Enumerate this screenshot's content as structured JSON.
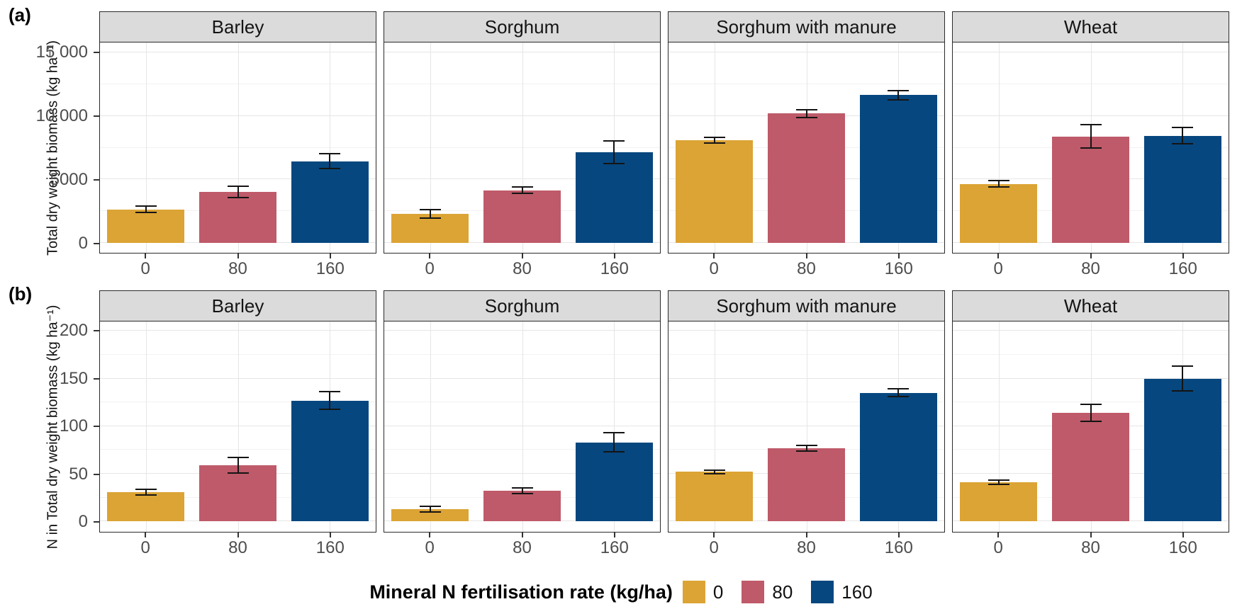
{
  "figure_title": "",
  "legend": {
    "title": "Mineral N fertilisation rate (kg/ha)",
    "position": "bottom",
    "items": [
      {
        "label": "0",
        "color": "#DCA435"
      },
      {
        "label": "80",
        "color": "#BE5A69"
      },
      {
        "label": "160",
        "color": "#06477F"
      }
    ]
  },
  "chart_data": [
    {
      "type": "bar",
      "panel_label": "(a)",
      "title": "",
      "xlabel": "",
      "ylabel": "Total dry weight biomass (kg ha⁻¹)",
      "facet_titles": [
        "Barley",
        "Sorghum",
        "Sorghum with manure",
        "Wheat"
      ],
      "categories": [
        "0",
        "80",
        "160"
      ],
      "yticks": [
        0,
        5000,
        10000,
        15000
      ],
      "ytick_labels": [
        "0",
        "5000",
        "10 000",
        "15 000"
      ],
      "yminor": [
        2500,
        7500,
        12500
      ],
      "ylim": [
        -780,
        15800
      ],
      "grid": true,
      "facets": [
        {
          "name": "Barley",
          "values": [
            2650,
            4000,
            6450
          ],
          "errors": [
            250,
            450,
            600
          ]
        },
        {
          "name": "Sorghum",
          "values": [
            2300,
            4150,
            7150
          ],
          "errors": [
            350,
            250,
            900
          ]
        },
        {
          "name": "Sorghum with manure",
          "values": [
            8100,
            10200,
            11650
          ],
          "errors": [
            200,
            300,
            350
          ]
        },
        {
          "name": "Wheat",
          "values": [
            4650,
            8400,
            8450
          ],
          "errors": [
            250,
            900,
            650
          ]
        }
      ]
    },
    {
      "type": "bar",
      "panel_label": "(b)",
      "title": "",
      "xlabel": "",
      "ylabel": "N in Total dry weight biomass (kg ha⁻¹)",
      "facet_titles": [
        "Barley",
        "Sorghum",
        "Sorghum with manure",
        "Wheat"
      ],
      "categories": [
        "0",
        "80",
        "160"
      ],
      "yticks": [
        0,
        50,
        100,
        150,
        200
      ],
      "ytick_labels": [
        "0",
        "50",
        "100",
        "150",
        "200"
      ],
      "yminor": [
        25,
        75,
        125,
        175
      ],
      "ylim": [
        -11,
        210
      ],
      "grid": true,
      "facets": [
        {
          "name": "Barley",
          "values": [
            31,
            59,
            127
          ],
          "errors": [
            3,
            8,
            9
          ]
        },
        {
          "name": "Sorghum",
          "values": [
            13,
            32,
            83
          ],
          "errors": [
            3,
            3,
            10
          ]
        },
        {
          "name": "Sorghum with manure",
          "values": [
            52,
            77,
            135
          ],
          "errors": [
            2,
            3,
            4
          ]
        },
        {
          "name": "Wheat",
          "values": [
            41,
            114,
            150
          ],
          "errors": [
            2,
            9,
            13
          ]
        }
      ]
    }
  ]
}
